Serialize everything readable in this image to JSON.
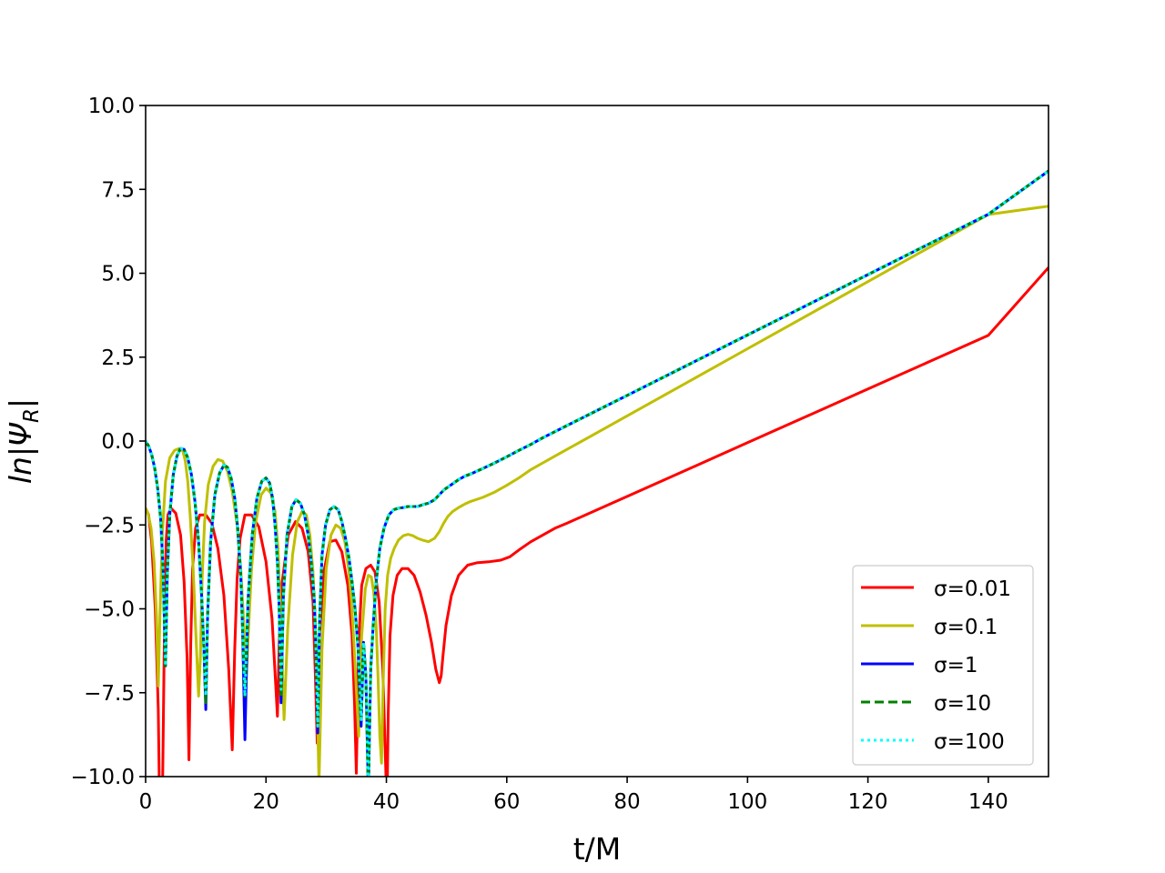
{
  "chart_data": {
    "type": "line",
    "title": "",
    "xlabel": "t/M",
    "ylabel": "ln|Ψ",
    "ylabel_subscript": "R",
    "ylabel_close": "|",
    "xlim": [
      0,
      150
    ],
    "ylim": [
      -10,
      10
    ],
    "xticks": [
      0,
      20,
      40,
      60,
      80,
      100,
      120,
      140
    ],
    "xtick_labels": [
      "0",
      "20",
      "40",
      "60",
      "80",
      "100",
      "120",
      "140"
    ],
    "yticks": [
      -10,
      -7.5,
      -5,
      -2.5,
      0,
      2.5,
      5,
      7.5,
      10
    ],
    "ytick_labels": [
      "−10.0",
      "−7.5",
      "−5.0",
      "−2.5",
      "0.0",
      "2.5",
      "5.0",
      "7.5",
      "10.0"
    ],
    "grid": false,
    "legend_position": "lower-right",
    "series": [
      {
        "name": "σ=0.01",
        "color": "#ff0000",
        "dash": "solid",
        "x": [
          0.0,
          0.5,
          1.0,
          1.6,
          2.1,
          2.4,
          2.7,
          3.1,
          3.4,
          3.7,
          4.2,
          5.0,
          5.8,
          6.4,
          6.9,
          7.2,
          7.5,
          7.8,
          8.3,
          9.0,
          10.0,
          11.0,
          12.0,
          13.0,
          13.8,
          14.4,
          14.8,
          15.2,
          15.7,
          16.5,
          17.6,
          18.8,
          20.0,
          21.0,
          21.6,
          21.9,
          22.2,
          22.7,
          23.7,
          24.9,
          26.0,
          27.0,
          27.8,
          28.2,
          28.5,
          28.9,
          29.6,
          30.6,
          31.6,
          32.6,
          33.6,
          34.3,
          34.7,
          35.0,
          35.4,
          35.9,
          36.6,
          37.4,
          38.1,
          38.8,
          39.4,
          39.8,
          40.1,
          40.3,
          40.6,
          41.1,
          41.8,
          42.6,
          43.6,
          44.6,
          45.6,
          46.6,
          47.5,
          48.2,
          48.8,
          49.1,
          49.4,
          49.9,
          50.8,
          52.0,
          53.5,
          55.0,
          57.0,
          59.0,
          60.5,
          62.0,
          64.0,
          66.0,
          68.0,
          70.0,
          75.0,
          80.0,
          90.0,
          100.0,
          110.0,
          120.0,
          130.0,
          140.0,
          150.0
        ],
        "y": [
          -2.0,
          -2.2,
          -3.0,
          -5.0,
          -8.0,
          -12,
          -12,
          -6.0,
          -3.0,
          -2.2,
          -2.0,
          -2.15,
          -2.8,
          -4.2,
          -6.5,
          -9.5,
          -6.0,
          -3.8,
          -2.6,
          -2.2,
          -2.2,
          -2.45,
          -3.2,
          -4.6,
          -6.8,
          -9.2,
          -6.2,
          -4.1,
          -2.9,
          -2.2,
          -2.2,
          -2.55,
          -3.6,
          -5.3,
          -7.2,
          -8.2,
          -6.0,
          -4.2,
          -2.8,
          -2.4,
          -2.6,
          -3.3,
          -4.8,
          -7.0,
          -9.0,
          -5.8,
          -3.9,
          -3.0,
          -2.95,
          -3.3,
          -4.3,
          -5.8,
          -7.8,
          -9.9,
          -6.0,
          -4.3,
          -3.8,
          -3.7,
          -3.9,
          -4.8,
          -6.8,
          -9.2,
          -11.0,
          -8.2,
          -5.8,
          -4.6,
          -4.0,
          -3.8,
          -3.8,
          -4.0,
          -4.5,
          -5.2,
          -6.0,
          -6.8,
          -7.2,
          -7.0,
          -6.4,
          -5.5,
          -4.6,
          -4.0,
          -3.7,
          -3.63,
          -3.6,
          -3.55,
          -3.45,
          -3.25,
          -3.0,
          -2.8,
          -2.6,
          -2.45,
          -2.05,
          -1.65,
          -0.85,
          -0.05,
          0.75,
          1.55,
          2.35,
          3.15,
          5.17
        ]
      },
      {
        "name": "σ=0.1",
        "color": "#bfbf00",
        "dash": "solid",
        "x": [
          0.0,
          0.4,
          0.9,
          1.4,
          1.8,
          2.1,
          2.4,
          2.8,
          3.3,
          4.0,
          4.8,
          5.6,
          6.2,
          6.6,
          7.0,
          7.4,
          7.9,
          8.4,
          8.8,
          9.1,
          9.4,
          9.8,
          10.4,
          11.2,
          12.0,
          12.8,
          13.6,
          14.4,
          15.2,
          15.8,
          16.3,
          16.7,
          17.1,
          17.6,
          18.3,
          19.2,
          20.0,
          20.8,
          21.5,
          22.0,
          22.3,
          22.6,
          23.0,
          23.6,
          24.4,
          25.2,
          26.0,
          26.7,
          27.3,
          27.8,
          28.2,
          28.5,
          28.8,
          29.3,
          30.0,
          30.8,
          31.6,
          32.4,
          33.1,
          33.7,
          34.2,
          34.6,
          35.0,
          35.4,
          35.9,
          36.5,
          37.0,
          37.5,
          37.9,
          38.3,
          38.6,
          38.9,
          39.2,
          39.5,
          39.8,
          40.2,
          40.7,
          41.3,
          42.0,
          42.8,
          43.6,
          44.4,
          45.2,
          46.0,
          47.0,
          48.0,
          48.8,
          49.5,
          50.2,
          51.0,
          52.0,
          53.0,
          54.0,
          56.0,
          58.0,
          60.0,
          62.0,
          64.0,
          66.0,
          68.0,
          70.0,
          75.0,
          80.0,
          90.0,
          100.0,
          110.0,
          120.0,
          130.0,
          140.0,
          150.0
        ],
        "y": [
          -2.0,
          -2.15,
          -2.6,
          -3.6,
          -5.2,
          -7.3,
          -5.0,
          -2.7,
          -1.2,
          -0.5,
          -0.28,
          -0.22,
          -0.3,
          -0.6,
          -1.2,
          -2.2,
          -3.8,
          -6.0,
          -7.6,
          -6.4,
          -4.0,
          -2.4,
          -1.3,
          -0.75,
          -0.55,
          -0.6,
          -0.9,
          -1.5,
          -2.5,
          -3.8,
          -5.4,
          -7.2,
          -5.6,
          -3.8,
          -2.4,
          -1.6,
          -1.4,
          -1.55,
          -2.1,
          -3.2,
          -4.6,
          -6.2,
          -8.3,
          -5.6,
          -3.4,
          -2.4,
          -2.1,
          -2.2,
          -2.8,
          -3.9,
          -5.4,
          -7.8,
          -10.2,
          -6.2,
          -3.8,
          -2.8,
          -2.5,
          -2.6,
          -3.0,
          -3.8,
          -4.8,
          -6.0,
          -7.4,
          -8.8,
          -5.8,
          -4.4,
          -4.0,
          -4.05,
          -4.5,
          -5.5,
          -7.0,
          -8.8,
          -9.6,
          -7.0,
          -5.0,
          -4.0,
          -3.5,
          -3.2,
          -2.95,
          -2.82,
          -2.78,
          -2.82,
          -2.9,
          -2.95,
          -3.0,
          -2.9,
          -2.7,
          -2.45,
          -2.25,
          -2.1,
          -1.98,
          -1.88,
          -1.8,
          -1.68,
          -1.52,
          -1.32,
          -1.1,
          -0.85,
          -0.65,
          -0.45,
          -0.25,
          0.25,
          0.75,
          1.75,
          2.75,
          3.75,
          4.75,
          5.75,
          6.75,
          7.0
        ]
      },
      {
        "name": "σ=1",
        "color": "#0000ff",
        "dash": "solid",
        "x": [
          0.0,
          0.5,
          1.0,
          1.5,
          2.0,
          2.5,
          2.9,
          3.3,
          3.6,
          4.0,
          4.6,
          5.2,
          5.8,
          6.4,
          7.0,
          7.6,
          8.2,
          8.8,
          9.3,
          9.7,
          10.0,
          10.3,
          10.8,
          11.5,
          12.3,
          13.0,
          13.6,
          14.2,
          14.8,
          15.3,
          15.8,
          16.1,
          16.5,
          17.0,
          17.7,
          18.5,
          19.3,
          20.0,
          20.6,
          21.1,
          21.5,
          21.9,
          22.2,
          22.5,
          22.9,
          23.5,
          24.3,
          25.0,
          25.7,
          26.4,
          27.0,
          27.5,
          28.0,
          28.3,
          28.6,
          28.9,
          29.3,
          29.9,
          30.6,
          31.3,
          32.0,
          32.6,
          33.2,
          33.8,
          34.3,
          34.8,
          35.3,
          35.8,
          36.2,
          36.6,
          37.0,
          37.4,
          37.8,
          38.3,
          38.9,
          39.6,
          40.4,
          41.2,
          42.0,
          42.8,
          43.6,
          44.4,
          45.2,
          46.0,
          47.0,
          48.0,
          48.8,
          49.6,
          50.4,
          51.2,
          52.0,
          53.0,
          54.0,
          55.0,
          56.0,
          58.0,
          60.0,
          62.0,
          64.0,
          66.0,
          68.0,
          70.0,
          75.0,
          80.0,
          90.0,
          100.0,
          110.0,
          120.0,
          130.0,
          140.0,
          150.0
        ],
        "y": [
          0.0,
          -0.15,
          -0.4,
          -0.8,
          -1.4,
          -2.3,
          -3.8,
          -6.7,
          -4.0,
          -2.2,
          -1.0,
          -0.45,
          -0.22,
          -0.25,
          -0.5,
          -1.0,
          -1.8,
          -3.0,
          -4.6,
          -6.2,
          -8.0,
          -5.2,
          -3.0,
          -1.6,
          -0.95,
          -0.72,
          -0.78,
          -1.1,
          -1.7,
          -2.6,
          -4.0,
          -5.6,
          -8.9,
          -4.8,
          -2.8,
          -1.7,
          -1.2,
          -1.1,
          -1.25,
          -1.7,
          -2.5,
          -3.6,
          -5.0,
          -7.8,
          -4.6,
          -2.8,
          -1.95,
          -1.75,
          -1.85,
          -2.2,
          -2.8,
          -3.6,
          -4.7,
          -6.2,
          -8.7,
          -5.4,
          -3.4,
          -2.5,
          -2.05,
          -1.95,
          -2.05,
          -2.4,
          -2.9,
          -3.5,
          -4.2,
          -5.0,
          -6.2,
          -8.5,
          -6.0,
          -7.0,
          -10.5,
          -6.8,
          -5.5,
          -4.2,
          -3.2,
          -2.6,
          -2.2,
          -2.05,
          -2.0,
          -1.98,
          -1.95,
          -1.95,
          -1.95,
          -1.9,
          -1.85,
          -1.75,
          -1.6,
          -1.45,
          -1.35,
          -1.25,
          -1.15,
          -1.05,
          -0.98,
          -0.9,
          -0.82,
          -0.65,
          -0.47,
          -0.28,
          -0.1,
          0.1,
          0.28,
          0.46,
          0.91,
          1.36,
          2.26,
          3.16,
          4.06,
          4.96,
          5.86,
          6.76,
          8.05
        ]
      },
      {
        "name": "σ=10",
        "color": "#008000",
        "dash": "dashed",
        "x": [
          0.0,
          0.5,
          1.0,
          1.5,
          2.0,
          2.5,
          2.9,
          3.3,
          3.6,
          4.0,
          4.6,
          5.2,
          5.8,
          6.4,
          7.0,
          7.6,
          8.2,
          8.8,
          9.3,
          9.7,
          10.0,
          10.3,
          10.8,
          11.5,
          12.3,
          13.0,
          13.6,
          14.2,
          14.8,
          15.3,
          15.8,
          16.1,
          16.5,
          17.0,
          17.7,
          18.5,
          19.3,
          20.0,
          20.6,
          21.1,
          21.5,
          21.9,
          22.2,
          22.5,
          22.9,
          23.5,
          24.3,
          25.0,
          25.7,
          26.4,
          27.0,
          27.5,
          28.0,
          28.3,
          28.6,
          28.9,
          29.3,
          29.9,
          30.6,
          31.3,
          32.0,
          32.6,
          33.2,
          33.8,
          34.3,
          34.8,
          35.3,
          35.8,
          36.2,
          36.6,
          37.0,
          37.4,
          37.8,
          38.3,
          38.9,
          39.6,
          40.4,
          41.2,
          42.0,
          42.8,
          43.6,
          44.4,
          45.2,
          46.0,
          47.0,
          48.0,
          48.8,
          49.6,
          50.4,
          51.2,
          52.0,
          53.0,
          54.0,
          55.0,
          56.0,
          58.0,
          60.0,
          62.0,
          64.0,
          66.0,
          68.0,
          70.0,
          75.0,
          80.0,
          90.0,
          100.0,
          110.0,
          120.0,
          130.0,
          140.0,
          150.0
        ],
        "y": [
          0.0,
          -0.15,
          -0.4,
          -0.8,
          -1.4,
          -2.3,
          -3.8,
          -6.7,
          -4.0,
          -2.2,
          -1.0,
          -0.45,
          -0.22,
          -0.25,
          -0.5,
          -1.0,
          -1.8,
          -3.0,
          -4.6,
          -6.2,
          -7.8,
          -5.2,
          -3.0,
          -1.6,
          -0.95,
          -0.72,
          -0.78,
          -1.1,
          -1.7,
          -2.6,
          -4.0,
          -5.6,
          -7.6,
          -4.8,
          -2.8,
          -1.7,
          -1.2,
          -1.1,
          -1.25,
          -1.7,
          -2.5,
          -3.6,
          -5.0,
          -7.6,
          -4.6,
          -2.8,
          -1.95,
          -1.75,
          -1.85,
          -2.2,
          -2.8,
          -3.6,
          -4.7,
          -6.2,
          -8.5,
          -5.4,
          -3.4,
          -2.5,
          -2.05,
          -1.95,
          -2.05,
          -2.4,
          -2.9,
          -3.5,
          -4.2,
          -5.0,
          -6.2,
          -8.3,
          -6.0,
          -7.0,
          -10.5,
          -6.8,
          -5.5,
          -4.2,
          -3.2,
          -2.6,
          -2.2,
          -2.05,
          -2.0,
          -1.98,
          -1.95,
          -1.95,
          -1.95,
          -1.9,
          -1.85,
          -1.75,
          -1.6,
          -1.45,
          -1.35,
          -1.25,
          -1.15,
          -1.05,
          -0.98,
          -0.9,
          -0.82,
          -0.65,
          -0.47,
          -0.28,
          -0.1,
          0.1,
          0.28,
          0.46,
          0.91,
          1.36,
          2.26,
          3.16,
          4.06,
          4.96,
          5.86,
          6.76,
          8.05
        ]
      },
      {
        "name": "σ=100",
        "color": "#00ffff",
        "dash": "dotted",
        "x": [
          0.0,
          0.5,
          1.0,
          1.5,
          2.0,
          2.5,
          2.9,
          3.3,
          3.6,
          4.0,
          4.6,
          5.2,
          5.8,
          6.4,
          7.0,
          7.6,
          8.2,
          8.8,
          9.3,
          9.7,
          10.0,
          10.3,
          10.8,
          11.5,
          12.3,
          13.0,
          13.6,
          14.2,
          14.8,
          15.3,
          15.8,
          16.1,
          16.5,
          17.0,
          17.7,
          18.5,
          19.3,
          20.0,
          20.6,
          21.1,
          21.5,
          21.9,
          22.2,
          22.5,
          22.9,
          23.5,
          24.3,
          25.0,
          25.7,
          26.4,
          27.0,
          27.5,
          28.0,
          28.3,
          28.6,
          28.9,
          29.3,
          29.9,
          30.6,
          31.3,
          32.0,
          32.6,
          33.2,
          33.8,
          34.3,
          34.8,
          35.3,
          35.8,
          36.2,
          36.6,
          37.0,
          37.4,
          37.8,
          38.3,
          38.9,
          39.6,
          40.4,
          41.2,
          42.0,
          42.8,
          43.6,
          44.4,
          45.2,
          46.0,
          47.0,
          48.0,
          48.8,
          49.6,
          50.4,
          51.2,
          52.0,
          53.0,
          54.0,
          55.0,
          56.0,
          58.0,
          60.0,
          62.0,
          64.0,
          66.0,
          68.0,
          70.0,
          75.0,
          80.0,
          90.0,
          100.0,
          110.0,
          120.0,
          130.0,
          140.0,
          150.0
        ],
        "y": [
          0.0,
          -0.15,
          -0.4,
          -0.8,
          -1.4,
          -2.3,
          -3.8,
          -6.7,
          -4.0,
          -2.2,
          -1.0,
          -0.45,
          -0.22,
          -0.25,
          -0.5,
          -1.0,
          -1.8,
          -3.0,
          -4.6,
          -6.2,
          -7.6,
          -5.2,
          -3.0,
          -1.6,
          -0.95,
          -0.72,
          -0.78,
          -1.1,
          -1.7,
          -2.6,
          -4.0,
          -5.6,
          -7.6,
          -4.8,
          -2.8,
          -1.7,
          -1.2,
          -1.1,
          -1.25,
          -1.7,
          -2.5,
          -3.6,
          -5.0,
          -7.4,
          -4.6,
          -2.8,
          -1.95,
          -1.75,
          -1.85,
          -2.2,
          -2.8,
          -3.6,
          -4.7,
          -6.2,
          -8.5,
          -5.4,
          -3.4,
          -2.5,
          -2.05,
          -1.95,
          -2.05,
          -2.4,
          -2.9,
          -3.5,
          -4.2,
          -5.0,
          -6.2,
          -8.3,
          -6.0,
          -7.0,
          -10.5,
          -6.8,
          -5.5,
          -4.2,
          -3.2,
          -2.6,
          -2.2,
          -2.05,
          -2.0,
          -1.98,
          -1.95,
          -1.95,
          -1.95,
          -1.9,
          -1.85,
          -1.75,
          -1.6,
          -1.45,
          -1.35,
          -1.25,
          -1.15,
          -1.05,
          -0.98,
          -0.9,
          -0.82,
          -0.65,
          -0.47,
          -0.28,
          -0.1,
          0.1,
          0.28,
          0.46,
          0.91,
          1.36,
          2.26,
          3.16,
          4.06,
          4.96,
          5.86,
          6.76,
          8.05
        ]
      }
    ]
  }
}
